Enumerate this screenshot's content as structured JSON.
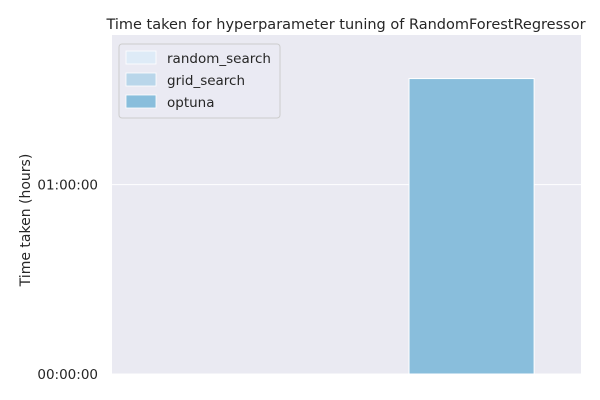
{
  "chart_data": {
    "type": "bar",
    "title": "Time taken for hyperparameter tuning of RandomForestRegressor",
    "xlabel": "",
    "ylabel": "Time taken (hours)",
    "y_unit": "hours",
    "ylim": [
      0,
      1.79
    ],
    "y_ticks": [
      {
        "value": 0,
        "label": "00:00:00"
      },
      {
        "value": 1,
        "label": "01:00:00"
      }
    ],
    "categories": [
      ""
    ],
    "series": [
      {
        "name": "random_search",
        "values": [
          0
        ],
        "color": "#deebf7"
      },
      {
        "name": "grid_search",
        "values": [
          0
        ],
        "color": "#b9d6ea"
      },
      {
        "name": "optuna",
        "values": [
          1.56
        ],
        "color": "#89bedc"
      }
    ],
    "grid": true,
    "legend_position": "upper-left",
    "background_color": "#eaeaf2",
    "grid_color": "#ffffff"
  }
}
